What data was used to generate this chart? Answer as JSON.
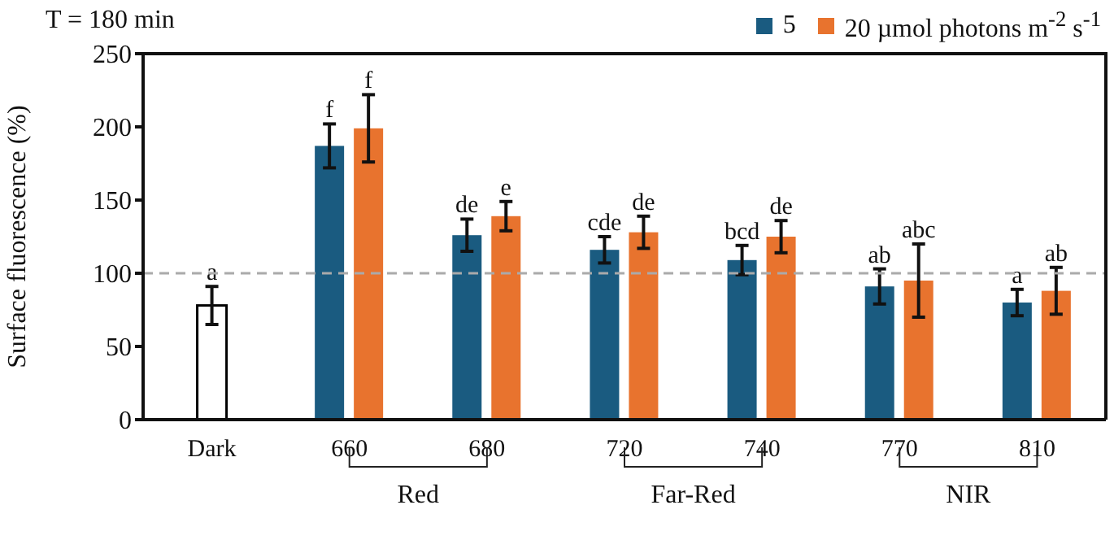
{
  "chart_data": {
    "type": "bar",
    "title": "T = 180 min",
    "ylabel": "Surface fluorescence (%)",
    "categories": [
      "Dark",
      "660",
      "680",
      "720",
      "740",
      "770",
      "810"
    ],
    "series": [
      {
        "name": "5",
        "color": "#1a5b80",
        "values": [
          null,
          187,
          126,
          116,
          109,
          91,
          80
        ],
        "errors": [
          null,
          15,
          11,
          9,
          10,
          12,
          9
        ]
      },
      {
        "name": "20 µmol photons m$^{-2}$ s$^{-1}$",
        "color": "#e8732e",
        "values": [
          null,
          199,
          139,
          128,
          125,
          95,
          88
        ],
        "errors": [
          null,
          23,
          10,
          11,
          11,
          25,
          16
        ]
      },
      {
        "color": "#ffffff",
        "values": [
          78,
          null,
          null,
          null,
          null,
          null,
          null
        ],
        "errors": [
          13,
          null,
          null,
          null,
          null,
          null,
          null
        ]
      }
    ],
    "ylim": [
      0,
      250
    ],
    "yticks": [
      0,
      50,
      100,
      150,
      200,
      250
    ],
    "legend": "top right",
    "ref_lines": [
      {
        "axis": "y",
        "value": 100,
        "color": "#aaaaaa",
        "line_style": "dashed"
      }
    ],
    "annotations": [
      {
        "text": "a",
        "x": "Dark",
        "y": 78
      },
      {
        "text": "f",
        "x": "660",
        "y": 187
      },
      {
        "text": "f",
        "x": "660",
        "y": 199
      },
      {
        "text": "de",
        "x": "680",
        "y": 126
      },
      {
        "text": "e",
        "x": "680",
        "y": 139
      },
      {
        "text": "cde",
        "x": "720",
        "y": 116
      },
      {
        "text": "de",
        "x": "720",
        "y": 128
      },
      {
        "text": "bcd",
        "x": "740",
        "y": 109
      },
      {
        "text": "de",
        "x": "740",
        "y": 125
      },
      {
        "text": "ab",
        "x": "770",
        "y": 91
      },
      {
        "text": "abc",
        "x": "770",
        "y": 95
      },
      {
        "text": "a",
        "x": "810",
        "y": 80
      },
      {
        "text": "ab",
        "x": "810",
        "y": 88
      },
      "Red",
      "Far-Red",
      "NIR"
    ]
  }
}
